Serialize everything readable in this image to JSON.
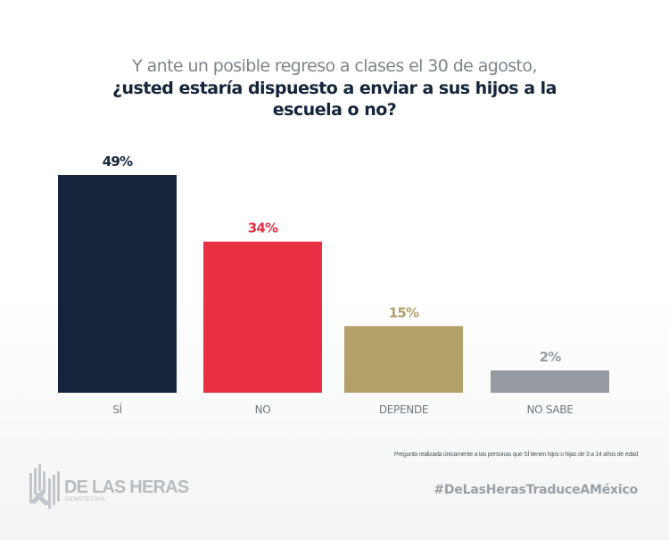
{
  "chart_data": {
    "type": "bar",
    "title_light": "Y ante un posible regreso a clases el 30 de agosto,",
    "title_bold": "¿usted estaría dispuesto a enviar a sus hijos a la escuela o no?",
    "categories": [
      "SÍ",
      "NO",
      "DEPENDE",
      "NO SABE"
    ],
    "values": [
      49,
      34,
      15,
      2
    ],
    "value_labels": [
      "49%",
      "34%",
      "15%",
      "2%"
    ],
    "colors": [
      "#13243b",
      "#e83042",
      "#b4a16a",
      "#959ba1"
    ],
    "label_colors": [
      "#13243b",
      "#e83042",
      "#b4a16a",
      "#959ba1"
    ],
    "xlabel": "",
    "ylabel": "",
    "unit": "%",
    "ylim": [
      0,
      49
    ],
    "grid": false,
    "legend": "none"
  },
  "footnote": "Pregunta realizada únicamente a las personas que SÍ tienen hijos o hijas de 3 a 14 años de edad",
  "hashtag": "#DeLasHerasTraduceAMéxico",
  "logo": {
    "name": "DE LAS HERAS",
    "subtitle": "DEMOTECNIA",
    "icon": "de-las-heras-logo-icon"
  }
}
